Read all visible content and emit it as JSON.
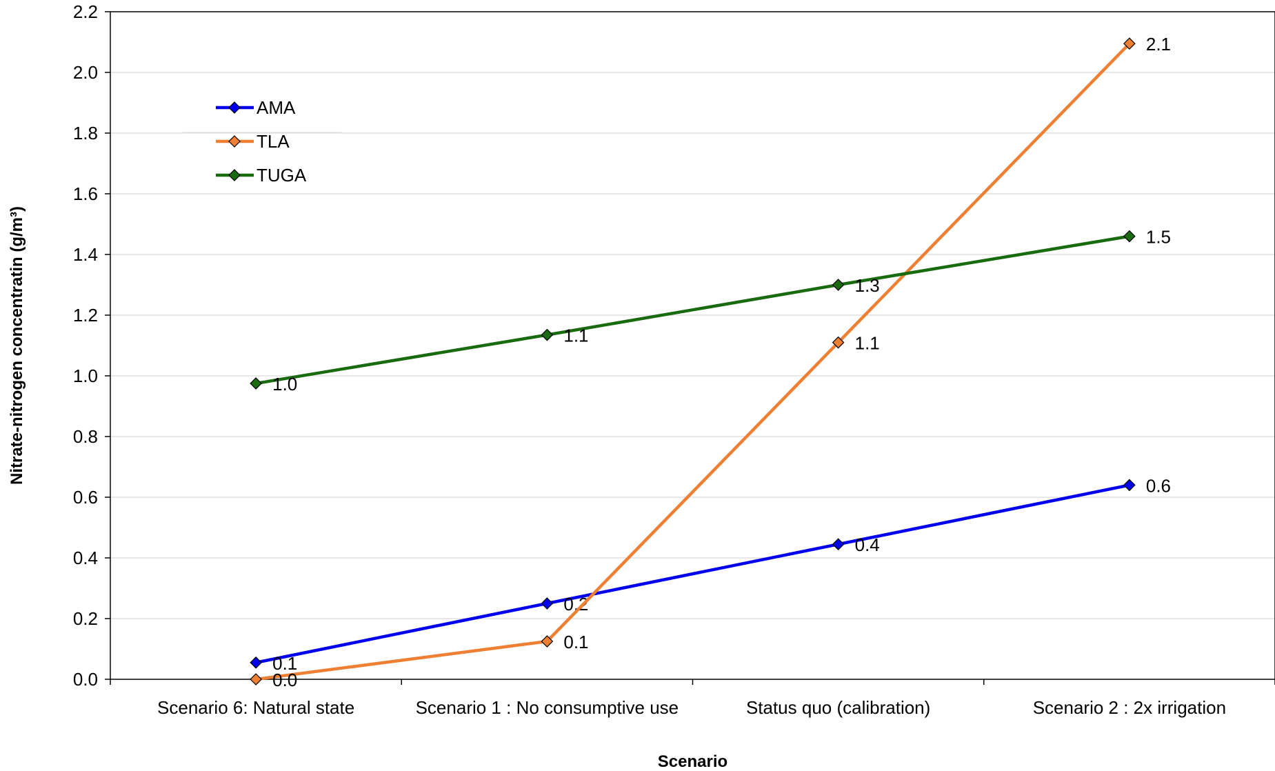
{
  "chart_data": {
    "type": "line",
    "title": "",
    "xlabel": "Scenario",
    "ylabel": "Nitrate-nitrogen concentratin (g/m³)",
    "categories": [
      "Scenario 6: Natural state",
      "Scenario 1 : No consumptive use",
      "Status quo (calibration)",
      "Scenario 2 : 2x irrigation"
    ],
    "ylim": [
      0,
      2.2
    ],
    "yticks": [
      "0.0",
      "0.2",
      "0.4",
      "0.6",
      "0.8",
      "1.0",
      "1.2",
      "1.4",
      "1.6",
      "1.8",
      "2.0",
      "2.2"
    ],
    "grid": true,
    "legend_position": "top-left",
    "series": [
      {
        "name": "AMA",
        "color": "#0000ee",
        "values": [
          0.055,
          0.25,
          0.445,
          0.64
        ],
        "labels": [
          "0.1",
          "0.2",
          "0.4",
          "0.6"
        ]
      },
      {
        "name": "TLA",
        "color": "#ee7f33",
        "values": [
          0.0,
          0.125,
          1.11,
          2.095
        ],
        "labels": [
          "0.0",
          "0.1",
          "1.1",
          "2.1"
        ]
      },
      {
        "name": "TUGA",
        "color": "#1a6b10",
        "values": [
          0.975,
          1.135,
          1.3,
          1.46
        ],
        "labels": [
          "1.0",
          "1.1",
          "1.3",
          "1.5"
        ]
      }
    ]
  }
}
